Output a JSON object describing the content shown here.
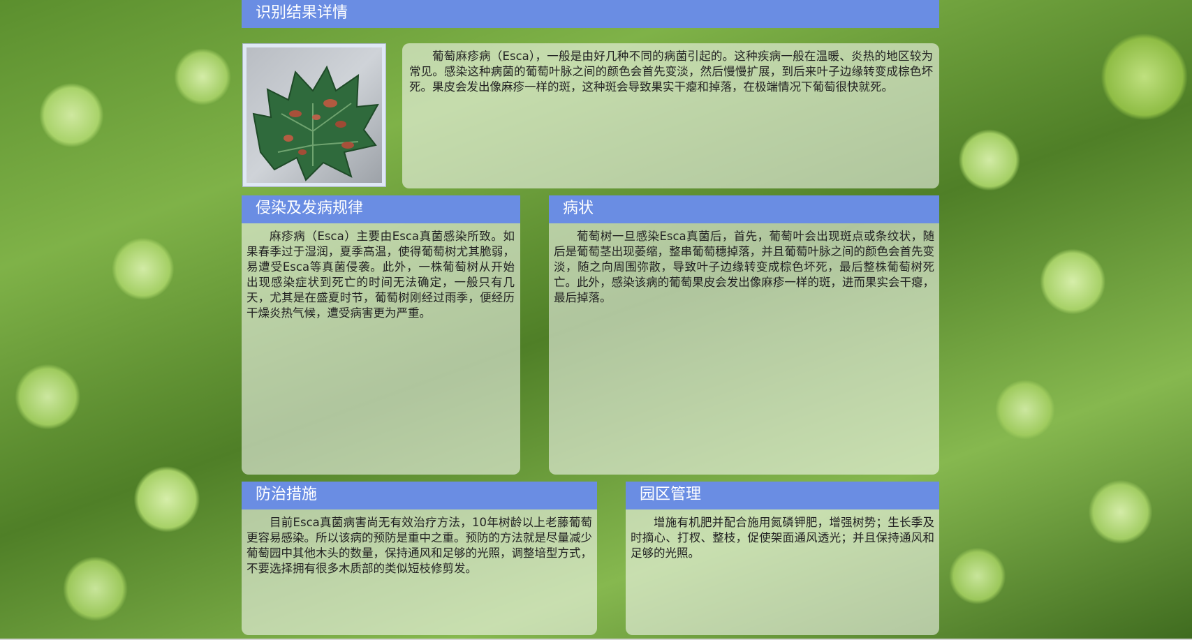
{
  "page_title": "识别结果详情",
  "intro": {
    "text": "葡萄麻疹病（Esca），一般是由好几种不同的病菌引起的。这种疾病一般在温暖、炎热的地区较为常见。感染这种病菌的葡萄叶脉之间的颜色会首先变淡，然后慢慢扩展，到后来叶子边缘转变成棕色坏死。果皮会发出像麻疹一样的斑，这种斑会导致果实干瘪和掉落，在极端情况下葡萄很快就死。"
  },
  "infection": {
    "title": "侵染及发病规律",
    "text": "麻疹病（Esca）主要由Esca真菌感染所致。如果春季过于湿润，夏季高温，使得葡萄树尤其脆弱，易遭受Esca等真菌侵袭。此外，一株葡萄树从开始出现感染症状到死亡的时间无法确定，一般只有几天，尤其是在盛夏时节，葡萄树刚经过雨季，便经历干燥炎热气候，遭受病害更为严重。"
  },
  "symptoms": {
    "title": "病状",
    "text": "葡萄树一旦感染Esca真菌后，首先，葡萄叶会出现斑点或条纹状，随后是葡萄茎出现萎缩，整串葡萄穗掉落，并且葡萄叶脉之间的颜色会首先变淡，随之向周围弥散，导致叶子边缘转变成棕色坏死，最后整株葡萄树死亡。此外，感染该病的葡萄果皮会发出像麻疹一样的斑，进而果实会干瘪，最后掉落。"
  },
  "prevention": {
    "title": "防治措施",
    "text": "目前Esca真菌病害尚无有效治疗方法，10年树龄以上老藤葡萄更容易感染。所以该病的预防是重中之重。预防的方法就是尽量减少葡萄园中其他木头的数量，保持通风和足够的光照，调整培型方式，不要选择拥有很多木质部的类似短枝修剪发。"
  },
  "management": {
    "title": "园区管理",
    "text": "增施有机肥并配合施用氮磷钾肥，增强树势；生长季及时摘心、打杈、整枝，促使架面通风透光；并且保持通风和足够的光照。"
  },
  "colors": {
    "header_bg": "#6a8de3",
    "header_text": "#ffffff",
    "panel_bg": "rgba(255,255,255,0.55)"
  }
}
